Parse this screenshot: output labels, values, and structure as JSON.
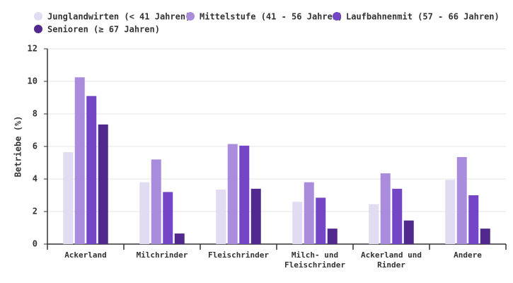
{
  "chart_data": {
    "type": "bar",
    "y_label": "Betriebe (%)",
    "categories": [
      "Ackerland",
      "Milchrinder",
      "Fleischrinder",
      "Milch- und Fleischrinder",
      "Ackerland und Rinder",
      "Andere"
    ],
    "series": [
      {
        "name": "Junglandwirten (< 41 Jahren)",
        "color": "#e2dcf2",
        "values": [
          5.65,
          3.8,
          3.35,
          2.6,
          2.45,
          3.95
        ]
      },
      {
        "name": "Mittelstufe (41 - 56 Jahren)",
        "color": "#a98ddc",
        "values": [
          10.25,
          5.2,
          6.15,
          3.8,
          4.35,
          5.35
        ]
      },
      {
        "name": "Laufbahnenmit (57 - 66 Jahren)",
        "color": "#7446c6",
        "values": [
          9.1,
          3.2,
          6.05,
          2.85,
          3.4,
          3.0
        ]
      },
      {
        "name": "Senioren (≥ 67 Jahren)",
        "color": "#51288e",
        "values": [
          7.35,
          0.65,
          3.4,
          0.95,
          1.45,
          0.95
        ]
      }
    ],
    "ylim": [
      0,
      12
    ],
    "yticks": [
      0,
      2,
      4,
      6,
      8,
      10,
      12
    ],
    "grid": true
  }
}
